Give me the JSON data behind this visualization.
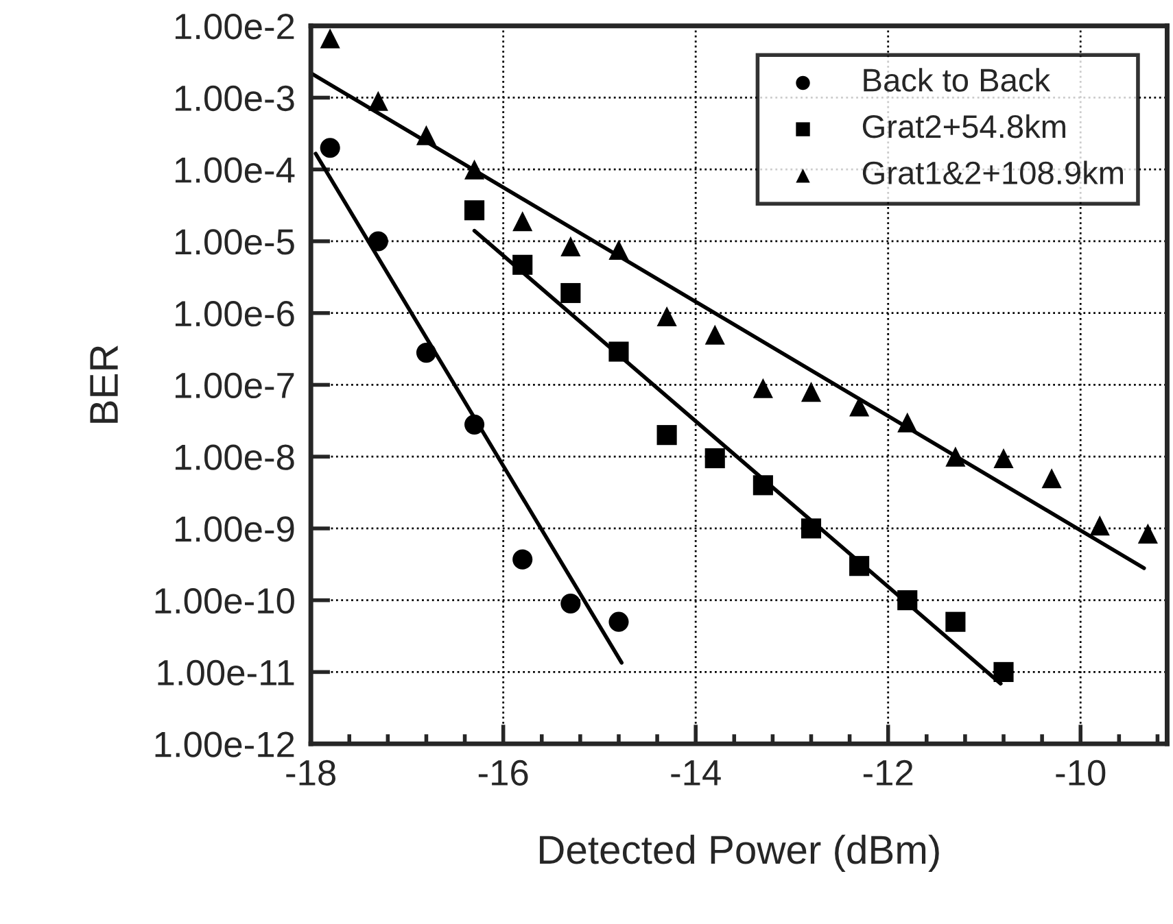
{
  "chart_data": {
    "type": "scatter",
    "xlabel": "Detected Power (dBm)",
    "ylabel": "BER",
    "log": "y",
    "grid": true,
    "legend": "top right",
    "xlim": [
      -18.0,
      -9.1
    ],
    "xticks": [
      -18,
      -16,
      -14,
      -12,
      -10
    ],
    "ylim": [
      1e-12,
      0.01
    ],
    "yticks": [
      {
        "value": 1e-12,
        "label": "1.00e-12"
      },
      {
        "value": 1e-11,
        "label": "1.00e-11"
      },
      {
        "value": 1e-10,
        "label": "1.00e-10"
      },
      {
        "value": 1e-09,
        "label": "1.00e-9"
      },
      {
        "value": 1e-08,
        "label": "1.00e-8"
      },
      {
        "value": 1e-07,
        "label": "1.00e-7"
      },
      {
        "value": 1e-06,
        "label": "1.00e-6"
      },
      {
        "value": 1e-05,
        "label": "1.00e-5"
      },
      {
        "value": 0.0001,
        "label": "1.00e-4"
      },
      {
        "value": 0.001,
        "label": "1.00e-3"
      },
      {
        "value": 0.01,
        "label": "1.00e-2"
      }
    ],
    "series": [
      {
        "name": "Back to Back",
        "marker": "circle",
        "color": "#000000",
        "x": [
          -17.8,
          -17.3,
          -16.8,
          -16.3,
          -15.8,
          -15.3,
          -14.8
        ],
        "values": [
          0.0002,
          1e-05,
          2.8e-07,
          2.8e-08,
          3.7e-10,
          9e-11,
          5e-11
        ]
      },
      {
        "name": "Grat2+54.8km",
        "marker": "square",
        "color": "#000000",
        "x": [
          -16.3,
          -15.8,
          -15.3,
          -14.8,
          -14.3,
          -13.8,
          -13.3,
          -12.8,
          -12.3,
          -11.8,
          -11.3,
          -10.8
        ],
        "values": [
          2.7e-05,
          4.7e-06,
          1.9e-06,
          2.9e-07,
          2e-08,
          9.5e-09,
          4e-09,
          1e-09,
          3e-10,
          1e-10,
          5e-11,
          1e-11
        ]
      },
      {
        "name": "Grat1&2+108.9km",
        "marker": "triangle",
        "color": "#000000",
        "x": [
          -17.8,
          -17.3,
          -16.8,
          -16.3,
          -15.8,
          -15.3,
          -14.8,
          -14.3,
          -13.8,
          -13.3,
          -12.8,
          -12.3,
          -11.8,
          -11.3,
          -10.8,
          -10.3,
          -9.8,
          -9.3
        ],
        "values": [
          0.0067,
          0.0009,
          0.0003,
          0.0001,
          1.9e-05,
          8.5e-06,
          7.6e-06,
          9e-07,
          5e-07,
          9e-08,
          8e-08,
          5e-08,
          3e-08,
          1e-08,
          9.5e-09,
          5e-09,
          1.1e-09,
          8.5e-10
        ]
      },
      {
        "type": "line",
        "color": "#000000",
        "line_style": "solid",
        "x": [
          -17.95,
          -14.77
        ],
        "values": [
          0.000166,
          1.35e-11
        ]
      },
      {
        "type": "line",
        "color": "#000000",
        "line_style": "solid",
        "x": [
          -16.3,
          -10.83
        ],
        "values": [
          1.4e-05,
          6.9e-12
        ]
      },
      {
        "type": "line",
        "color": "#000000",
        "line_style": "solid",
        "x": [
          -18.0,
          -9.34
        ],
        "values": [
          0.0022,
          2.8e-10
        ]
      }
    ]
  }
}
